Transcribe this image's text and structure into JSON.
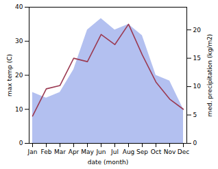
{
  "chart_data": {
    "type": "line",
    "categories": [
      "Jan",
      "Feb",
      "Mar",
      "Apr",
      "May",
      "Jun",
      "Jul",
      "Aug",
      "Sep",
      "Oct",
      "Nov",
      "Dec"
    ],
    "xlabel": "date (month)",
    "ylabel": "max temp (C)",
    "y2label": "med. precipitation (kg/m2)",
    "ylim": [
      0,
      40
    ],
    "yticks": [
      0,
      10,
      20,
      30,
      40
    ],
    "y2lim": [
      0,
      24
    ],
    "y2ticks": [
      0,
      5,
      10,
      15,
      20
    ],
    "series": [
      {
        "type": "area",
        "axis": "y2",
        "color": "#b3c0f0",
        "values": [
          9,
          8,
          9,
          13,
          20,
          22,
          20,
          21,
          19,
          12,
          11,
          6
        ]
      },
      {
        "type": "line",
        "color": "#9b3a52",
        "values": [
          8,
          16,
          17,
          25,
          24,
          32,
          29,
          35,
          26,
          18,
          13,
          10
        ]
      }
    ]
  }
}
